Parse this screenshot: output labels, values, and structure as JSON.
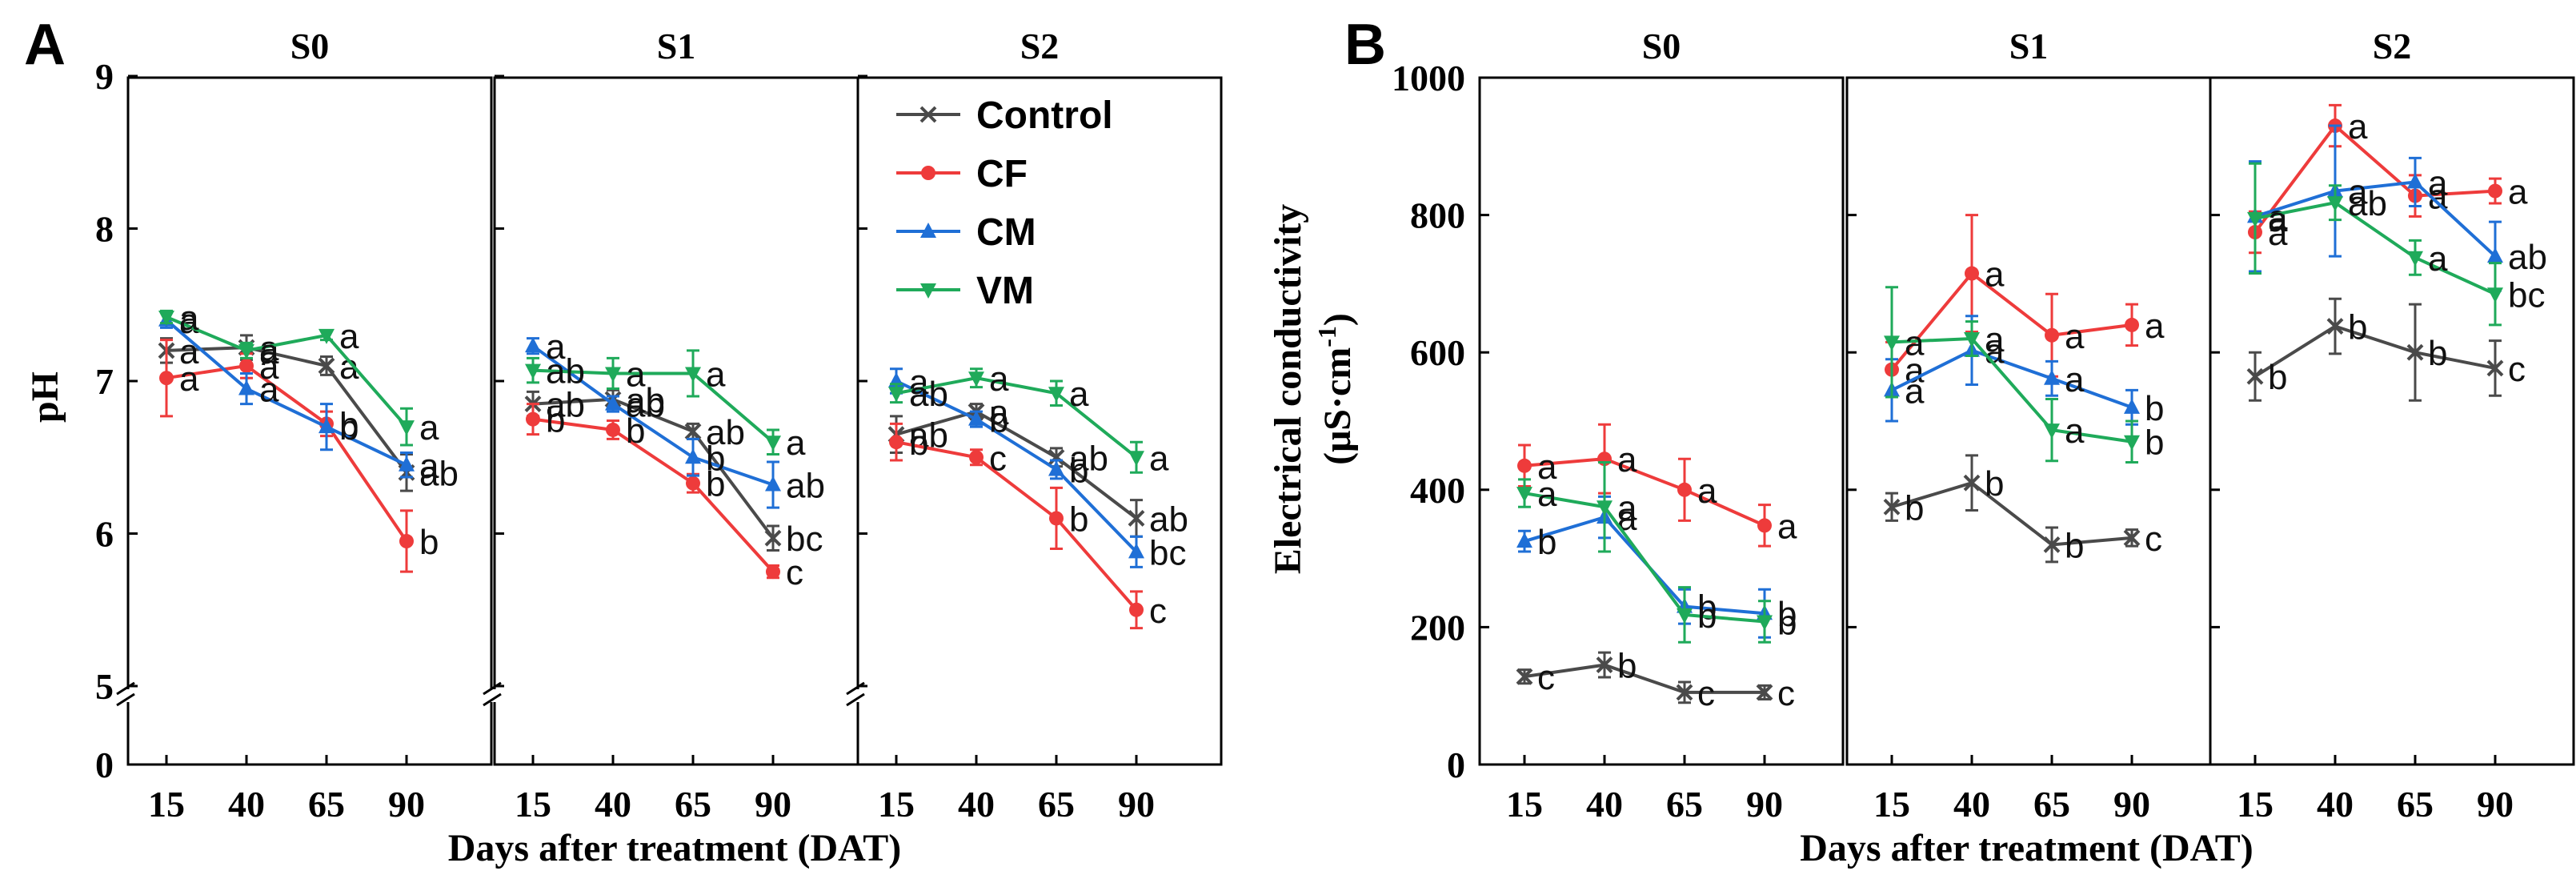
{
  "figure": {
    "panel_labels": [
      "A",
      "B"
    ],
    "colors": {
      "Control": "#4a4a4a",
      "CF": "#ee3b3b",
      "CM": "#1f6fd6",
      "VM": "#1faa5a"
    },
    "markers": {
      "Control": "x",
      "CF": "circle",
      "CM": "triangle-up",
      "VM": "triangle-down"
    }
  },
  "chart_data": [
    {
      "type": "line",
      "panel": "A",
      "facets": [
        "S0",
        "S1",
        "S2"
      ],
      "x": [
        15,
        40,
        65,
        90
      ],
      "xlabel": "Days after treatment (DAT)",
      "ylabel": "pH",
      "ylim": [
        5,
        9
      ],
      "yticks": [
        5,
        6,
        7,
        8,
        9
      ],
      "yticks_extra": [
        0
      ],
      "axis_break": true,
      "legend": {
        "entries": [
          "Control",
          "CF",
          "CM",
          "VM"
        ],
        "placement": "top-right of S2"
      },
      "series": {
        "S0": [
          {
            "name": "Control",
            "values": [
              7.2,
              7.22,
              7.1,
              6.4
            ],
            "err": [
              0.08,
              0.08,
              0.06,
              0.12
            ],
            "sig": [
              "a",
              "a",
              "a",
              "ab"
            ]
          },
          {
            "name": "CF",
            "values": [
              7.02,
              7.1,
              6.72,
              5.95
            ],
            "err": [
              0.25,
              0.08,
              0.08,
              0.2
            ],
            "sig": [
              "a",
              "a",
              "b",
              "b"
            ]
          },
          {
            "name": "CM",
            "values": [
              7.4,
              6.95,
              6.7,
              6.45
            ],
            "err": [
              0.05,
              0.1,
              0.15,
              0.08
            ],
            "sig": [
              "a",
              "a",
              "b",
              "a"
            ]
          },
          {
            "name": "VM",
            "values": [
              7.42,
              7.2,
              7.3,
              6.7
            ],
            "err": [
              0.04,
              0.05,
              0.03,
              0.12
            ],
            "sig": [
              "a",
              "a",
              "a",
              "a"
            ]
          }
        ],
        "S1": [
          {
            "name": "Control",
            "values": [
              6.85,
              6.88,
              6.67,
              5.97
            ],
            "err": [
              0.08,
              0.06,
              0.05,
              0.08
            ],
            "sig": [
              "ab",
              "ab",
              "ab",
              "bc"
            ]
          },
          {
            "name": "CF",
            "values": [
              6.75,
              6.68,
              6.33,
              5.75
            ],
            "err": [
              0.1,
              0.06,
              0.06,
              0.04
            ],
            "sig": [
              "b",
              "b",
              "b",
              "c"
            ]
          },
          {
            "name": "CM",
            "values": [
              7.23,
              6.85,
              6.5,
              6.32
            ],
            "err": [
              0.05,
              0.05,
              0.12,
              0.15
            ],
            "sig": [
              "a",
              "ab",
              "b",
              "ab"
            ]
          },
          {
            "name": "VM",
            "values": [
              7.07,
              7.05,
              7.05,
              6.6
            ],
            "err": [
              0.08,
              0.1,
              0.15,
              0.08
            ],
            "sig": [
              "ab",
              "a",
              "a",
              "a"
            ]
          }
        ],
        "S2": [
          {
            "name": "Control",
            "values": [
              6.65,
              6.8,
              6.5,
              6.1
            ],
            "err": [
              0.12,
              0.05,
              0.06,
              0.12
            ],
            "sig": [
              "ab",
              "a",
              "ab",
              "ab"
            ]
          },
          {
            "name": "CF",
            "values": [
              6.6,
              6.5,
              6.1,
              5.5
            ],
            "err": [
              0.12,
              0.05,
              0.2,
              0.12
            ],
            "sig": [
              "b",
              "c",
              "b",
              "c"
            ]
          },
          {
            "name": "CM",
            "values": [
              7.0,
              6.75,
              6.42,
              5.88
            ],
            "err": [
              0.08,
              0.05,
              0.06,
              0.1
            ],
            "sig": [
              "a",
              "b",
              "b",
              "bc"
            ]
          },
          {
            "name": "VM",
            "values": [
              6.92,
              7.02,
              6.92,
              6.5
            ],
            "err": [
              0.06,
              0.06,
              0.08,
              0.1
            ],
            "sig": [
              "ab",
              "a",
              "a",
              "a"
            ]
          }
        ]
      }
    },
    {
      "type": "line",
      "panel": "B",
      "facets": [
        "S0",
        "S1",
        "S2"
      ],
      "x": [
        15,
        40,
        65,
        90
      ],
      "xlabel": "Days after treatment (DAT)",
      "ylabel": "Electrical conductivity",
      "ylabel_units": [
        "(μS·cm",
        "-1",
        ")"
      ],
      "ylim": [
        0,
        1000
      ],
      "yticks": [
        0,
        200,
        400,
        600,
        800,
        1000
      ],
      "series": {
        "S0": [
          {
            "name": "Control",
            "values": [
              128,
              145,
              105,
              105
            ],
            "err": [
              10,
              18,
              15,
              10
            ],
            "sig": [
              "c",
              "b",
              "c",
              "c"
            ]
          },
          {
            "name": "CF",
            "values": [
              435,
              445,
              400,
              348
            ],
            "err": [
              30,
              50,
              45,
              30
            ],
            "sig": [
              "a",
              "a",
              "a",
              "a"
            ]
          },
          {
            "name": "CM",
            "values": [
              325,
              360,
              230,
              220
            ],
            "err": [
              15,
              30,
              25,
              35
            ],
            "sig": [
              "b",
              "a",
              "b",
              "b"
            ]
          },
          {
            "name": "VM",
            "values": [
              395,
              375,
              218,
              208
            ],
            "err": [
              20,
              65,
              40,
              30
            ],
            "sig": [
              "a",
              "a",
              "b",
              "b"
            ]
          }
        ],
        "S1": [
          {
            "name": "Control",
            "values": [
              375,
              410,
              320,
              330
            ],
            "err": [
              20,
              40,
              25,
              12
            ],
            "sig": [
              "b",
              "b",
              "b",
              "c"
            ]
          },
          {
            "name": "CF",
            "values": [
              575,
              715,
              625,
              640
            ],
            "err": [
              40,
              85,
              60,
              30
            ],
            "sig": [
              "a",
              "a",
              "a",
              "a"
            ]
          },
          {
            "name": "CM",
            "values": [
              545,
              603,
              562,
              520
            ],
            "err": [
              45,
              50,
              25,
              25
            ],
            "sig": [
              "a",
              "a",
              "a",
              "b"
            ]
          },
          {
            "name": "VM",
            "values": [
              615,
              620,
              487,
              470
            ],
            "err": [
              80,
              25,
              45,
              30
            ],
            "sig": [
              "a",
              "a",
              "a",
              "b"
            ]
          }
        ],
        "S2": [
          {
            "name": "Control",
            "values": [
              565,
              638,
              600,
              577
            ],
            "err": [
              35,
              40,
              70,
              40
            ],
            "sig": [
              "b",
              "b",
              "b",
              "c"
            ]
          },
          {
            "name": "CF",
            "values": [
              775,
              930,
              828,
              835
            ],
            "err": [
              30,
              30,
              30,
              18
            ],
            "sig": [
              "a",
              "a",
              "a",
              "a"
            ]
          },
          {
            "name": "CM",
            "values": [
              798,
              835,
              848,
              740
            ],
            "err": [
              80,
              95,
              35,
              50
            ],
            "sig": [
              "a",
              "a",
              "a",
              "ab"
            ]
          },
          {
            "name": "VM",
            "values": [
              795,
              818,
              738,
              685
            ],
            "err": [
              80,
              25,
              25,
              45
            ],
            "sig": [
              "a",
              "ab",
              "a",
              "bc"
            ]
          }
        ]
      }
    }
  ]
}
